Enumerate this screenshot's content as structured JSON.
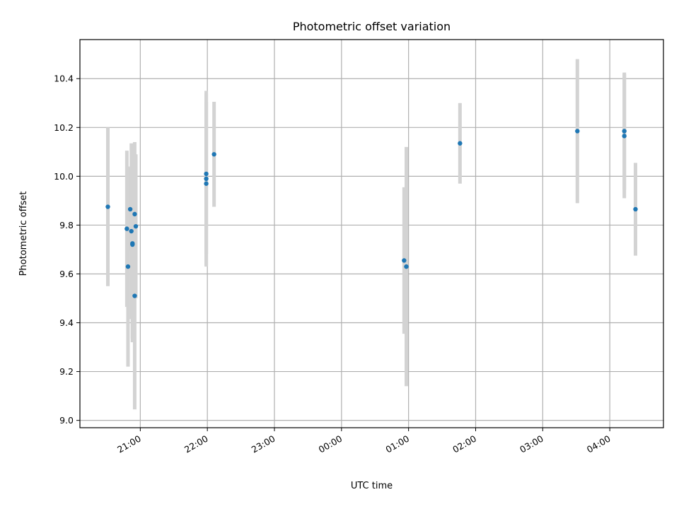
{
  "chart_data": {
    "type": "scatter",
    "title": "Photometric offset variation",
    "xlabel": "UTC time",
    "ylabel": "Photometric offset",
    "x_ticks": [
      "21:00",
      "22:00",
      "23:00",
      "00:00",
      "01:00",
      "02:00",
      "03:00",
      "04:00"
    ],
    "y_ticks": [
      "9.0",
      "9.2",
      "9.4",
      "9.6",
      "9.8",
      "10.0",
      "10.2",
      "10.4"
    ],
    "xlim": [
      "20:06",
      "04:48"
    ],
    "ylim": [
      8.97,
      10.56
    ],
    "grid": true,
    "colors": {
      "point": "#1f77b4",
      "errorbar": "#d3d3d3",
      "grid": "#b0b0b0"
    },
    "series": [
      {
        "points": [
          {
            "x": "20:31",
            "y": 9.875,
            "err": 0.325
          },
          {
            "x": "20:48",
            "y": 9.785,
            "err": 0.32
          },
          {
            "x": "20:49",
            "y": 9.63,
            "err": 0.41
          },
          {
            "x": "20:51",
            "y": 9.865,
            "err": 0.17
          },
          {
            "x": "20:52",
            "y": 9.775,
            "err": 0.36
          },
          {
            "x": "20:53",
            "y": 9.72,
            "err": 0.4
          },
          {
            "x": "20:53",
            "y": 9.725,
            "err": 0.39
          },
          {
            "x": "20:55",
            "y": 9.845,
            "err": 0.295
          },
          {
            "x": "20:55",
            "y": 9.51,
            "err": 0.465
          },
          {
            "x": "20:56",
            "y": 9.795,
            "err": 0.295
          },
          {
            "x": "21:59",
            "y": 9.97,
            "err": 0.335
          },
          {
            "x": "21:59",
            "y": 9.99,
            "err": 0.36
          },
          {
            "x": "21:59",
            "y": 10.01,
            "err": 0.33
          },
          {
            "x": "22:06",
            "y": 10.09,
            "err": 0.215
          },
          {
            "x": "00:56",
            "y": 9.655,
            "err": 0.3
          },
          {
            "x": "00:58",
            "y": 9.63,
            "err": 0.49
          },
          {
            "x": "01:46",
            "y": 10.135,
            "err": 0.165
          },
          {
            "x": "03:31",
            "y": 10.185,
            "err": 0.295
          },
          {
            "x": "04:13",
            "y": 10.185,
            "err": 0.24
          },
          {
            "x": "04:13",
            "y": 10.165,
            "err": 0.255
          },
          {
            "x": "04:23",
            "y": 9.865,
            "err": 0.19
          }
        ]
      }
    ]
  }
}
